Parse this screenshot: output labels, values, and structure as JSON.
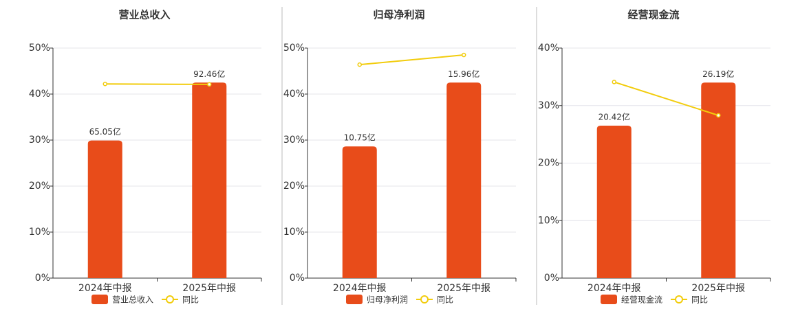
{
  "chart_data": [
    {
      "type": "combo",
      "title": "营业总收入",
      "categories": [
        "2024年中报",
        "2025年中报"
      ],
      "series": [
        {
          "name": "营业总收入",
          "type": "bar",
          "color": "#e84c1a",
          "values": [
            65.05,
            92.46
          ],
          "value_labels": [
            "65.05亿",
            "92.46亿"
          ]
        },
        {
          "name": "同比",
          "type": "line",
          "color": "#f2cc0c",
          "values": [
            42.2,
            42.1
          ]
        }
      ],
      "ylim": [
        0,
        50
      ],
      "yticks": [
        {
          "value": 0,
          "label": "0%"
        },
        {
          "value": 10,
          "label": "10%"
        },
        {
          "value": 20,
          "label": "20%"
        },
        {
          "value": 30,
          "label": "30%"
        },
        {
          "value": 40,
          "label": "40%"
        },
        {
          "value": 50,
          "label": "50%"
        }
      ],
      "grid": true
    },
    {
      "type": "combo",
      "title": "归母净利润",
      "categories": [
        "2024年中报",
        "2025年中报"
      ],
      "series": [
        {
          "name": "归母净利润",
          "type": "bar",
          "color": "#e84c1a",
          "values": [
            10.75,
            15.96
          ],
          "value_labels": [
            "10.75亿",
            "15.96亿"
          ]
        },
        {
          "name": "同比",
          "type": "line",
          "color": "#f2cc0c",
          "values": [
            46.4,
            48.5
          ]
        }
      ],
      "ylim": [
        0,
        50
      ],
      "yticks": [
        {
          "value": 0,
          "label": "0%"
        },
        {
          "value": 10,
          "label": "10%"
        },
        {
          "value": 20,
          "label": "20%"
        },
        {
          "value": 30,
          "label": "30%"
        },
        {
          "value": 40,
          "label": "40%"
        },
        {
          "value": 50,
          "label": "50%"
        }
      ],
      "grid": true
    },
    {
      "type": "combo",
      "title": "经营现金流",
      "categories": [
        "2024年中报",
        "2025年中报"
      ],
      "series": [
        {
          "name": "经营现金流",
          "type": "bar",
          "color": "#e84c1a",
          "values": [
            20.42,
            26.19
          ],
          "value_labels": [
            "20.42亿",
            "26.19亿"
          ]
        },
        {
          "name": "同比",
          "type": "line",
          "color": "#f2cc0c",
          "values": [
            34.1,
            28.3
          ]
        }
      ],
      "ylim": [
        0,
        40
      ],
      "yticks": [
        {
          "value": 0,
          "label": "0%"
        },
        {
          "value": 10,
          "label": "10%"
        },
        {
          "value": 20,
          "label": "20%"
        },
        {
          "value": 30,
          "label": "30%"
        },
        {
          "value": 40,
          "label": "40%"
        }
      ],
      "grid": true
    }
  ]
}
